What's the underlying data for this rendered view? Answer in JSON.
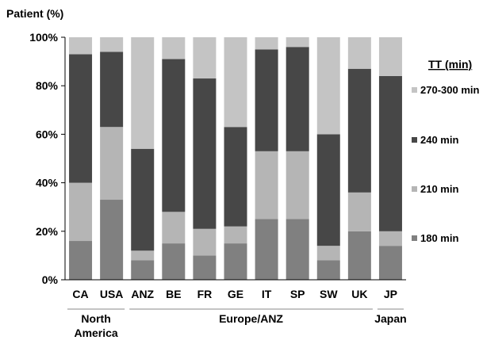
{
  "chart_data": {
    "type": "bar",
    "stacked": true,
    "ylabel": "Patient (%)",
    "ylim": [
      0,
      100
    ],
    "yticks": [
      "0%",
      "20%",
      "40%",
      "60%",
      "80%",
      "100%"
    ],
    "categories": [
      "CA",
      "USA",
      "ANZ",
      "BE",
      "FR",
      "GE",
      "IT",
      "SP",
      "SW",
      "UK",
      "JP"
    ],
    "groups": [
      {
        "label": "North\nAmerica",
        "from": 0,
        "to": 1
      },
      {
        "label": "Europe/ANZ",
        "from": 2,
        "to": 9
      },
      {
        "label": "Japan",
        "from": 10,
        "to": 10
      }
    ],
    "legend_title": "TT (min)",
    "legend_position": "right",
    "series": [
      {
        "name": "180 min",
        "color": "#808080",
        "values": [
          16,
          33,
          8,
          15,
          10,
          15,
          25,
          25,
          8,
          20,
          14
        ]
      },
      {
        "name": "210 min",
        "color": "#b5b5b5",
        "values": [
          24,
          30,
          4,
          13,
          11,
          7,
          28,
          28,
          6,
          16,
          6
        ]
      },
      {
        "name": "240 min",
        "color": "#474747",
        "values": [
          53,
          31,
          42,
          63,
          62,
          41,
          42,
          43,
          46,
          51,
          64
        ]
      },
      {
        "name": "270-300 min",
        "color": "#c4c4c4",
        "values": [
          7,
          6,
          46,
          9,
          17,
          37,
          5,
          4,
          40,
          13,
          16
        ]
      }
    ]
  }
}
